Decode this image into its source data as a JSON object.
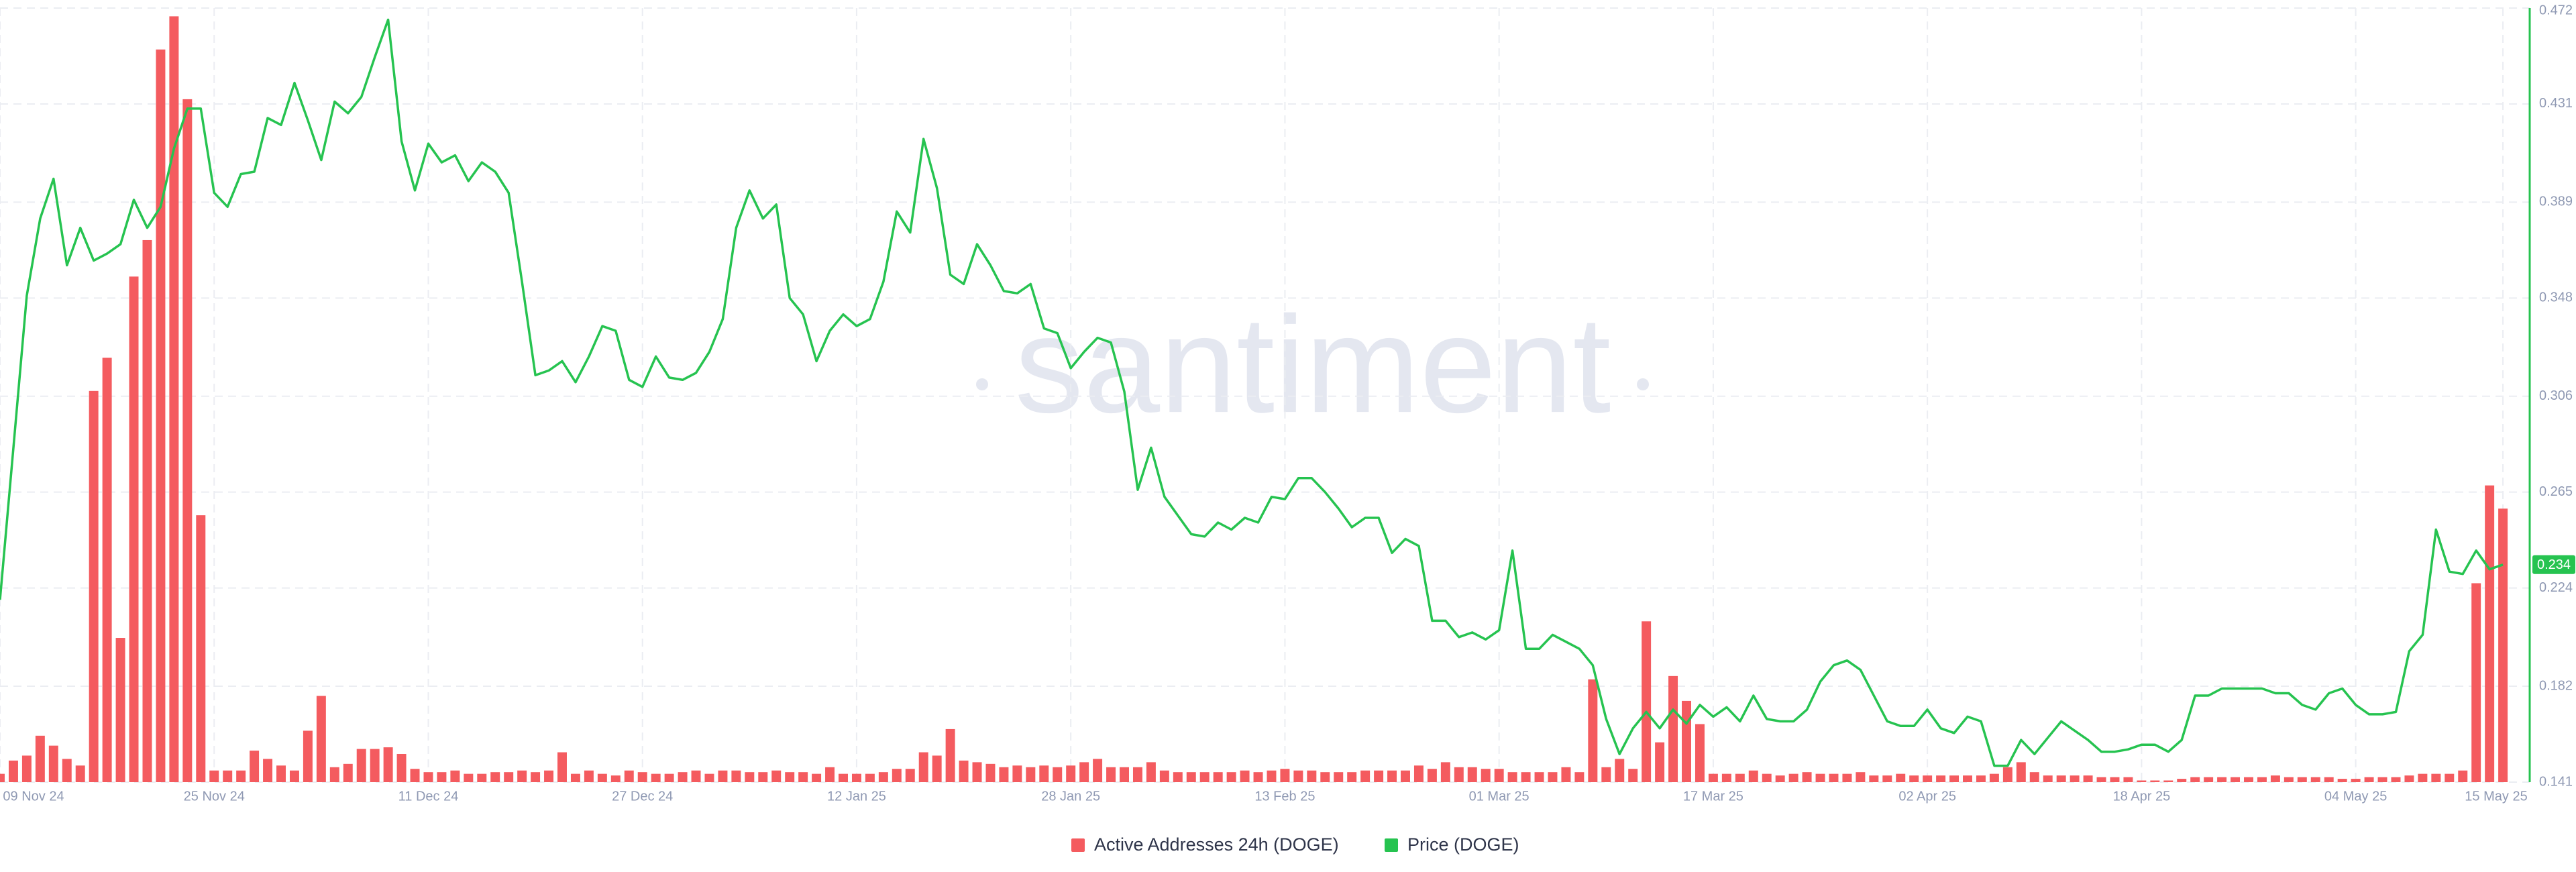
{
  "chart_data": {
    "type": "combo",
    "watermark": "santiment",
    "x": [
      "2024-11-09",
      "2024-11-10",
      "2024-11-11",
      "2024-11-12",
      "2024-11-13",
      "2024-11-14",
      "2024-11-15",
      "2024-11-16",
      "2024-11-17",
      "2024-11-18",
      "2024-11-19",
      "2024-11-20",
      "2024-11-21",
      "2024-11-22",
      "2024-11-23",
      "2024-11-24",
      "2024-11-25",
      "2024-11-26",
      "2024-11-27",
      "2024-11-28",
      "2024-11-29",
      "2024-11-30",
      "2024-12-01",
      "2024-12-02",
      "2024-12-03",
      "2024-12-04",
      "2024-12-05",
      "2024-12-06",
      "2024-12-07",
      "2024-12-08",
      "2024-12-09",
      "2024-12-10",
      "2024-12-11",
      "2024-12-12",
      "2024-12-13",
      "2024-12-14",
      "2024-12-15",
      "2024-12-16",
      "2024-12-17",
      "2024-12-18",
      "2024-12-19",
      "2024-12-20",
      "2024-12-21",
      "2024-12-22",
      "2024-12-23",
      "2024-12-24",
      "2024-12-25",
      "2024-12-26",
      "2024-12-27",
      "2024-12-28",
      "2024-12-29",
      "2024-12-30",
      "2024-12-31",
      "2025-01-01",
      "2025-01-02",
      "2025-01-03",
      "2025-01-04",
      "2025-01-05",
      "2025-01-06",
      "2025-01-07",
      "2025-01-08",
      "2025-01-09",
      "2025-01-10",
      "2025-01-11",
      "2025-01-12",
      "2025-01-13",
      "2025-01-14",
      "2025-01-15",
      "2025-01-16",
      "2025-01-17",
      "2025-01-18",
      "2025-01-19",
      "2025-01-20",
      "2025-01-21",
      "2025-01-22",
      "2025-01-23",
      "2025-01-24",
      "2025-01-25",
      "2025-01-26",
      "2025-01-27",
      "2025-01-28",
      "2025-01-29",
      "2025-01-30",
      "2025-01-31",
      "2025-02-01",
      "2025-02-02",
      "2025-02-03",
      "2025-02-04",
      "2025-02-05",
      "2025-02-06",
      "2025-02-07",
      "2025-02-08",
      "2025-02-09",
      "2025-02-10",
      "2025-02-11",
      "2025-02-12",
      "2025-02-13",
      "2025-02-14",
      "2025-02-15",
      "2025-02-16",
      "2025-02-17",
      "2025-02-18",
      "2025-02-19",
      "2025-02-20",
      "2025-02-21",
      "2025-02-22",
      "2025-02-23",
      "2025-02-24",
      "2025-02-25",
      "2025-02-26",
      "2025-02-27",
      "2025-02-28",
      "2025-03-01",
      "2025-03-02",
      "2025-03-03",
      "2025-03-04",
      "2025-03-05",
      "2025-03-06",
      "2025-03-07",
      "2025-03-08",
      "2025-03-09",
      "2025-03-10",
      "2025-03-11",
      "2025-03-12",
      "2025-03-13",
      "2025-03-14",
      "2025-03-15",
      "2025-03-16",
      "2025-03-17",
      "2025-03-18",
      "2025-03-19",
      "2025-03-20",
      "2025-03-21",
      "2025-03-22",
      "2025-03-23",
      "2025-03-24",
      "2025-03-25",
      "2025-03-26",
      "2025-03-27",
      "2025-03-28",
      "2025-03-29",
      "2025-03-30",
      "2025-03-31",
      "2025-04-01",
      "2025-04-02",
      "2025-04-03",
      "2025-04-04",
      "2025-04-05",
      "2025-04-06",
      "2025-04-07",
      "2025-04-08",
      "2025-04-09",
      "2025-04-10",
      "2025-04-11",
      "2025-04-12",
      "2025-04-13",
      "2025-04-14",
      "2025-04-15",
      "2025-04-16",
      "2025-04-17",
      "2025-04-18",
      "2025-04-19",
      "2025-04-20",
      "2025-04-21",
      "2025-04-22",
      "2025-04-23",
      "2025-04-24",
      "2025-04-25",
      "2025-04-26",
      "2025-04-27",
      "2025-04-28",
      "2025-04-29",
      "2025-04-30",
      "2025-05-01",
      "2025-05-02",
      "2025-05-03",
      "2025-05-04",
      "2025-05-05",
      "2025-05-06",
      "2025-05-07",
      "2025-05-08",
      "2025-05-09",
      "2025-05-10",
      "2025-05-11",
      "2025-05-12",
      "2025-05-13",
      "2025-05-14",
      "2025-05-15"
    ],
    "xlim": [
      "2024-11-09",
      "2025-05-17"
    ],
    "xticks": [
      {
        "value": "2024-11-09",
        "label": "09 Nov 24"
      },
      {
        "value": "2024-11-25",
        "label": "25 Nov 24"
      },
      {
        "value": "2024-12-11",
        "label": "11 Dec 24"
      },
      {
        "value": "2024-12-27",
        "label": "27 Dec 24"
      },
      {
        "value": "2025-01-12",
        "label": "12 Jan 25"
      },
      {
        "value": "2025-01-28",
        "label": "28 Jan 25"
      },
      {
        "value": "2025-02-13",
        "label": "13 Feb 25"
      },
      {
        "value": "2025-03-01",
        "label": "01 Mar 25"
      },
      {
        "value": "2025-03-17",
        "label": "17 Mar 25"
      },
      {
        "value": "2025-04-02",
        "label": "02 Apr 25"
      },
      {
        "value": "2025-04-18",
        "label": "18 Apr 25"
      },
      {
        "value": "2025-05-04",
        "label": "04 May 25"
      },
      {
        "value": "2025-05-15",
        "label": "15 May 25"
      }
    ],
    "ylim": [
      0,
      467000
    ],
    "y2lim": [
      0.141,
      0.472
    ],
    "y2ticks": [
      0.141,
      0.182,
      0.224,
      0.265,
      0.306,
      0.348,
      0.389,
      0.431,
      0.472
    ],
    "grid": true,
    "series": [
      {
        "name": "Active Addresses 24h (DOGE)",
        "type": "bar",
        "color": "#f45b5f",
        "values": [
          5000,
          13000,
          16000,
          28000,
          22000,
          14000,
          10000,
          236000,
          256000,
          87000,
          305000,
          327000,
          442000,
          462000,
          412000,
          161000,
          7000,
          7000,
          7000,
          19000,
          14000,
          10000,
          7000,
          31000,
          52000,
          9000,
          11000,
          20000,
          20000,
          21000,
          17000,
          8000,
          6000,
          6000,
          7000,
          5000,
          5000,
          6000,
          6000,
          7000,
          6000,
          7000,
          18000,
          5000,
          7000,
          5000,
          4000,
          7000,
          6000,
          5000,
          5000,
          6000,
          7000,
          5000,
          7000,
          7000,
          6000,
          6000,
          7000,
          6000,
          6000,
          5000,
          9000,
          5000,
          5000,
          5000,
          6000,
          8000,
          8000,
          18000,
          16000,
          32000,
          13000,
          12000,
          11000,
          9000,
          10000,
          9000,
          10000,
          9000,
          10000,
          12000,
          14000,
          9000,
          9000,
          9000,
          12000,
          7000,
          6000,
          6000,
          6000,
          6000,
          6000,
          7000,
          6000,
          7000,
          8000,
          7000,
          7000,
          6000,
          6000,
          6000,
          7000,
          7000,
          7000,
          7000,
          10000,
          8000,
          12000,
          9000,
          9000,
          8000,
          8000,
          6000,
          6000,
          6000,
          6000,
          9000,
          6000,
          62000,
          9000,
          14000,
          8000,
          97000,
          24000,
          64000,
          49000,
          35000,
          5000,
          5000,
          5000,
          7000,
          5000,
          4000,
          5000,
          6000,
          5000,
          5000,
          5000,
          6000,
          4000,
          4000,
          5000,
          4000,
          4000,
          4000,
          4000,
          4000,
          4000,
          5000,
          9000,
          12000,
          6000,
          4000,
          4000,
          4000,
          4000,
          3000,
          3000,
          3000,
          1000,
          1000,
          1000,
          2000,
          3000,
          3000,
          3000,
          3000,
          3000,
          3000,
          4000,
          3000,
          3000,
          3000,
          3000,
          2000,
          2000,
          3000,
          3000,
          3000,
          4000,
          5000,
          5000,
          5000,
          7000,
          120000,
          179000,
          165000
        ]
      },
      {
        "name": "Price (DOGE)",
        "type": "line",
        "axis": "y2",
        "color": "#26c350",
        "values": [
          0.219,
          0.284,
          0.349,
          0.382,
          0.399,
          0.362,
          0.378,
          0.364,
          0.367,
          0.371,
          0.39,
          0.378,
          0.387,
          0.412,
          0.429,
          0.429,
          0.393,
          0.387,
          0.401,
          0.402,
          0.425,
          0.422,
          0.44,
          0.424,
          0.407,
          0.432,
          0.427,
          0.434,
          0.451,
          0.467,
          0.415,
          0.394,
          0.414,
          0.406,
          0.409,
          0.398,
          0.406,
          0.402,
          0.393,
          0.355,
          0.315,
          0.317,
          0.321,
          0.312,
          0.323,
          0.336,
          0.334,
          0.313,
          0.31,
          0.323,
          0.314,
          0.313,
          0.316,
          0.325,
          0.339,
          0.378,
          0.394,
          0.382,
          0.388,
          0.348,
          0.341,
          0.321,
          0.334,
          0.341,
          0.336,
          0.339,
          0.355,
          0.385,
          0.376,
          0.416,
          0.395,
          0.358,
          0.354,
          0.371,
          0.362,
          0.351,
          0.35,
          0.354,
          0.335,
          0.333,
          0.318,
          0.325,
          0.331,
          0.329,
          0.308,
          0.266,
          0.284,
          0.263,
          0.255,
          0.247,
          0.246,
          0.252,
          0.249,
          0.254,
          0.252,
          0.263,
          0.262,
          0.271,
          0.271,
          0.265,
          0.258,
          0.25,
          0.254,
          0.254,
          0.239,
          0.245,
          0.242,
          0.21,
          0.21,
          0.203,
          0.205,
          0.202,
          0.206,
          0.24,
          0.198,
          0.198,
          0.204,
          0.201,
          0.198,
          0.191,
          0.168,
          0.153,
          0.164,
          0.171,
          0.164,
          0.172,
          0.166,
          0.174,
          0.169,
          0.173,
          0.167,
          0.178,
          0.168,
          0.167,
          0.167,
          0.172,
          0.184,
          0.191,
          0.193,
          0.189,
          0.178,
          0.167,
          0.165,
          0.165,
          0.172,
          0.164,
          0.162,
          0.169,
          0.167,
          0.148,
          0.148,
          0.159,
          0.153,
          0.16,
          0.167,
          0.163,
          0.159,
          0.154,
          0.154,
          0.155,
          0.157,
          0.157,
          0.154,
          0.159,
          0.178,
          0.178,
          0.181,
          0.181,
          0.181,
          0.181,
          0.179,
          0.179,
          0.174,
          0.172,
          0.179,
          0.181,
          0.174,
          0.17,
          0.17,
          0.171,
          0.197,
          0.204,
          0.249,
          0.231,
          0.23,
          0.24,
          0.232,
          0.234
        ]
      }
    ]
  }
}
